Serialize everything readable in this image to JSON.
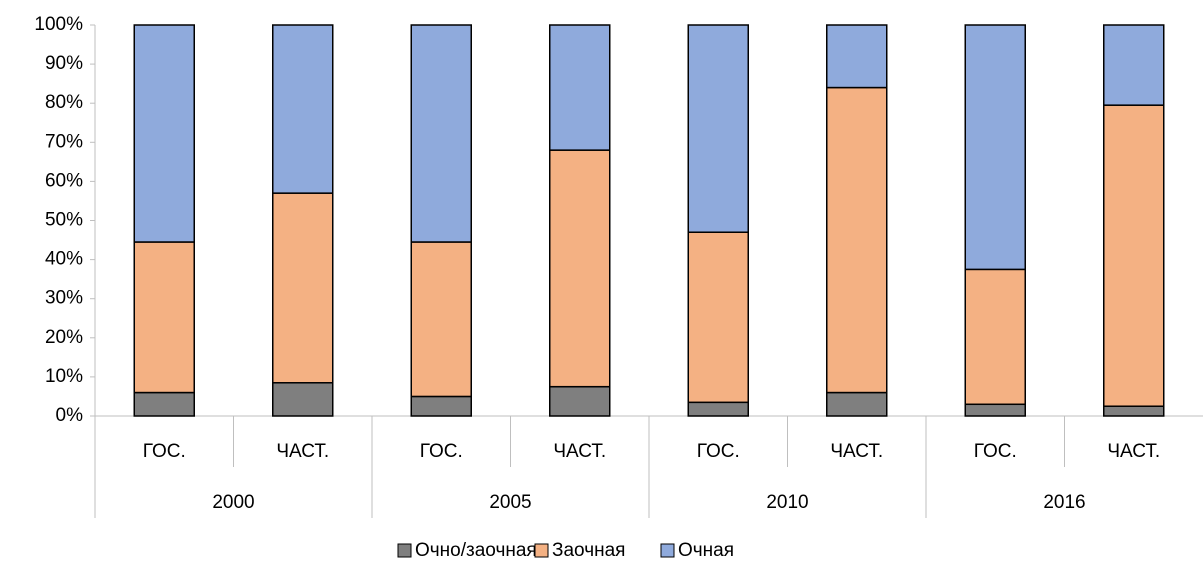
{
  "chart_data": {
    "type": "stacked_bar",
    "categories": [
      "ГОС.",
      "ЧАСТ.",
      "ГОС.",
      "ЧАСТ.",
      "ГОС.",
      "ЧАСТ.",
      "ГОС.",
      "ЧАСТ."
    ],
    "groups": [
      "2000",
      "2005",
      "2010",
      "2016"
    ],
    "series": [
      {
        "name": "Очно/заочная",
        "color": "#7f7f7f",
        "values": [
          6,
          8.5,
          5,
          7.5,
          3.5,
          6,
          3,
          2.5
        ]
      },
      {
        "name": "Заочная",
        "color": "#f4b183",
        "values": [
          38.5,
          48.5,
          39.5,
          60.5,
          43.5,
          78,
          34.5,
          77
        ]
      },
      {
        "name": "Очная",
        "color": "#8faadc",
        "values": [
          55.5,
          43,
          55.5,
          32,
          53,
          16,
          62.5,
          20.5
        ]
      }
    ],
    "ylim": [
      0,
      100
    ],
    "yticks": [
      {
        "value": 0,
        "label": "0%"
      },
      {
        "value": 10,
        "label": "10%"
      },
      {
        "value": 20,
        "label": "20%"
      },
      {
        "value": 30,
        "label": "30%"
      },
      {
        "value": 40,
        "label": "40%"
      },
      {
        "value": 50,
        "label": "50%"
      },
      {
        "value": 60,
        "label": "60%"
      },
      {
        "value": 70,
        "label": "70%"
      },
      {
        "value": 80,
        "label": "80%"
      },
      {
        "value": 90,
        "label": "90%"
      },
      {
        "value": 100,
        "label": "100%"
      }
    ],
    "legend": "bottom"
  }
}
